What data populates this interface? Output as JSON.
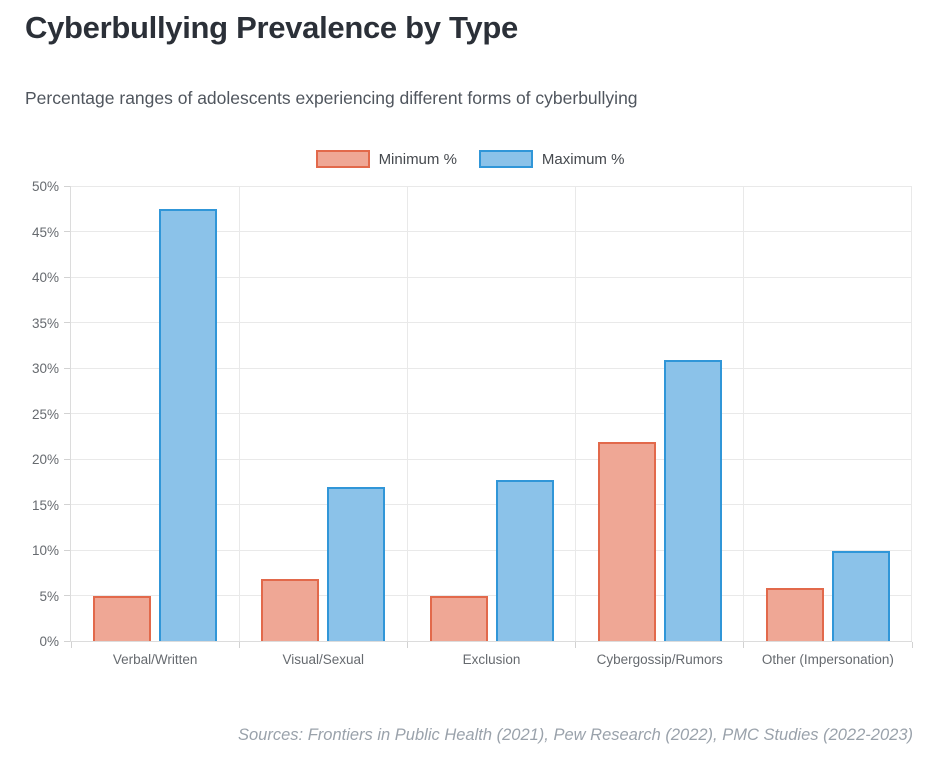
{
  "page": {
    "title": "Cyberbullying Prevalence by Type",
    "subtitle": "Percentage ranges of adolescents experiencing different forms of cyberbullying",
    "footer": "Sources: Frontiers in Public Health (2021), Pew Research (2022), PMC Studies (2022-2023)"
  },
  "colors": {
    "min_fill": "#EFA795",
    "min_border": "#E2694B",
    "max_fill": "#8BC2E9",
    "max_border": "#3096D8",
    "grid": "#e9e9e9",
    "axis_text": "#666a6f"
  },
  "chart_data": {
    "type": "bar",
    "title": "Cyberbullying Prevalence by Type",
    "subtitle": "Percentage ranges of adolescents experiencing different forms of cyberbullying",
    "categories": [
      "Verbal/Written",
      "Visual/Sexual",
      "Exclusion",
      "Cybergossip/Rumors",
      "Other (Impersonation)"
    ],
    "series": [
      {
        "name": "Minimum %",
        "values": [
          4.9,
          6.8,
          4.9,
          21.9,
          5.8
        ],
        "fill": "#EFA795",
        "border": "#E2694B"
      },
      {
        "name": "Maximum %",
        "values": [
          47.5,
          16.9,
          17.7,
          30.9,
          9.9
        ],
        "fill": "#8BC2E9",
        "border": "#3096D8"
      }
    ],
    "xlabel": "",
    "ylabel": "",
    "ylim": [
      0,
      50
    ],
    "y_tick_step": 5,
    "y_tick_labels": [
      "0%",
      "5%",
      "10%",
      "15%",
      "20%",
      "25%",
      "30%",
      "35%",
      "40%",
      "45%",
      "50%"
    ],
    "grid": true,
    "legend_position": "top",
    "source_note": "Sources: Frontiers in Public Health (2021), Pew Research (2022), PMC Studies (2022-2023)"
  }
}
